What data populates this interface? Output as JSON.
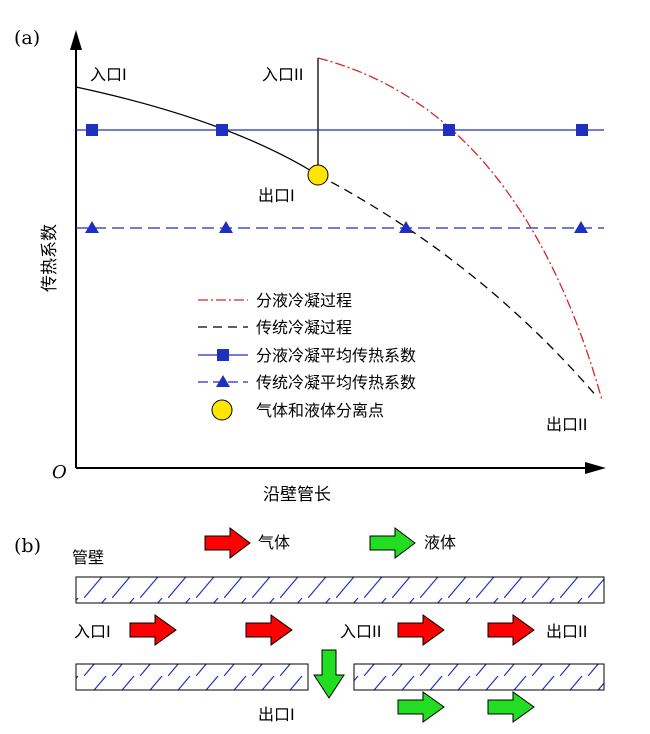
{
  "panel_a": {
    "label": "(a)",
    "origin": "O",
    "ylabel": "传热系数",
    "xlabel": "沿壁管长",
    "points": {
      "inlet1": "入口I",
      "inlet2": "入口II",
      "outlet1": "出口I",
      "outlet2": "出口II"
    },
    "legend": [
      {
        "label": "分液冷凝过程",
        "color": "#d62728",
        "style": "dash-dot"
      },
      {
        "label": "传统冷凝过程",
        "color": "#000000",
        "style": "dashed"
      },
      {
        "label": "分液冷凝平均传热系数",
        "color": "#1f2fbf",
        "marker": "square"
      },
      {
        "label": "传统冷凝平均传热系数",
        "color": "#1f2fbf",
        "marker": "triangle"
      },
      {
        "label": "气体和液体分离点",
        "color": "#ffe600",
        "marker": "circle"
      }
    ]
  },
  "panel_b": {
    "label": "(b)",
    "wall_label": "管壁",
    "gas_label": "气体",
    "liquid_label": "液体",
    "inlet1": "入口I",
    "inlet2": "入口II",
    "outlet1": "出口I",
    "outlet2": "出口II",
    "colors": {
      "gas": "#ff0000",
      "liquid": "#22dd22",
      "hatch": "#1f2fbf"
    }
  }
}
